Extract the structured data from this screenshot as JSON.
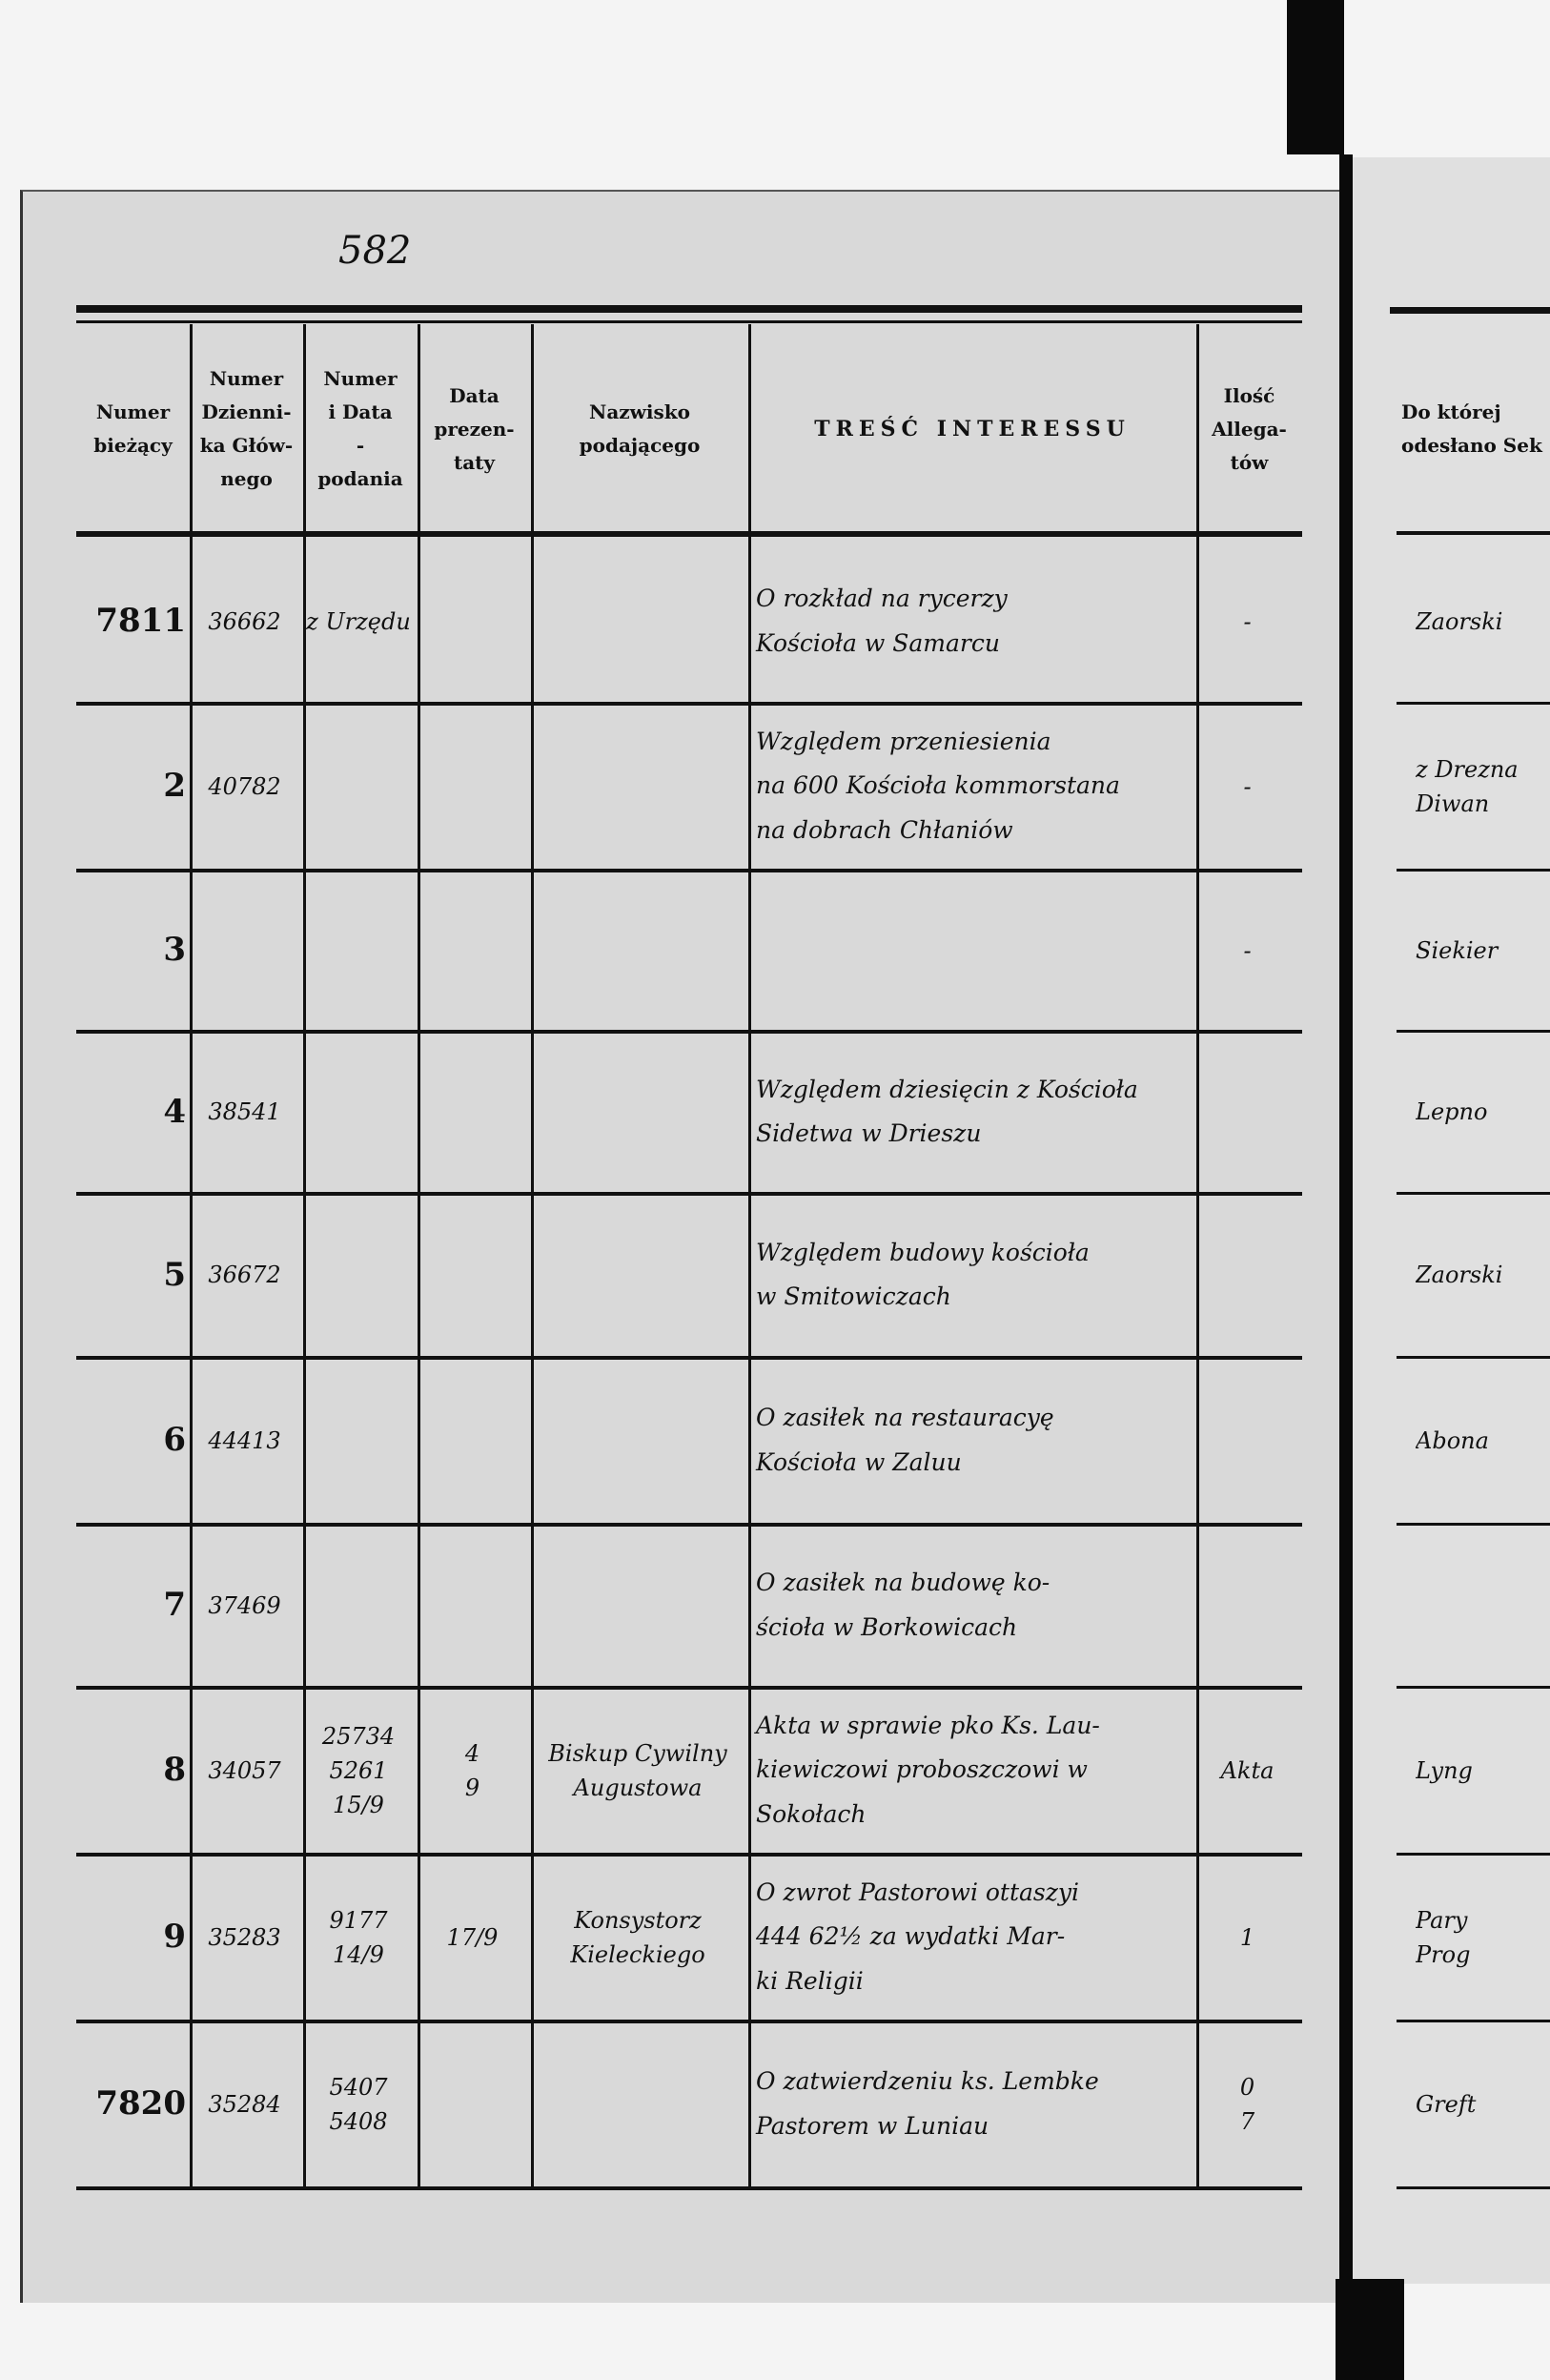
{
  "page_number": "582",
  "table": {
    "headers": [
      "Numer\nbieżący",
      "Numer\nDzienni-\nka Głów-\nnego",
      "Numer\ni Data\n-\npodania",
      "Data\nprezen-\ntaty",
      "Nazwisko\npodającego",
      "TREŚĆ INTERESSU",
      "Ilość\nAllega-\ntów"
    ],
    "rows": [
      {
        "numer": "7811",
        "dziennik": "36662",
        "numer_data": "z Urzędu",
        "data_prez": "",
        "nazwisko": "",
        "tresc": "O rozkład na rycerzy\nKościoła w Samarcu",
        "ilosc": "-"
      },
      {
        "numer": "2",
        "dziennik": "40782",
        "numer_data": "",
        "data_prez": "",
        "nazwisko": "",
        "tresc": "Względem przeniesienia\nna 600 Kościoła kommorstana\nna dobrach Chłaniów",
        "ilosc": "-"
      },
      {
        "numer": "3",
        "dziennik": "",
        "numer_data": "",
        "data_prez": "",
        "nazwisko": "",
        "tresc": "",
        "ilosc": "-"
      },
      {
        "numer": "4",
        "dziennik": "38541",
        "numer_data": "",
        "data_prez": "",
        "nazwisko": "",
        "tresc": "Względem dziesięcin z Kościoła\nSidetwa w Drieszu",
        "ilosc": ""
      },
      {
        "numer": "5",
        "dziennik": "36672",
        "numer_data": "",
        "data_prez": "",
        "nazwisko": "",
        "tresc": "Względem budowy kościoła\nw Smitowiczach",
        "ilosc": ""
      },
      {
        "numer": "6",
        "dziennik": "44413",
        "numer_data": "",
        "data_prez": "",
        "nazwisko": "",
        "tresc": "O zasiłek na restauracyę\nKościoła w Zaluu",
        "ilosc": ""
      },
      {
        "numer": "7",
        "dziennik": "37469",
        "numer_data": "",
        "data_prez": "",
        "nazwisko": "",
        "tresc": "O zasiłek na budowę ko-\nścioła w Borkowicach",
        "ilosc": ""
      },
      {
        "numer": "8",
        "dziennik": "34057",
        "numer_data": "25734\n5261\n15/9",
        "data_prez": "4\n9",
        "nazwisko": "Biskup Cywilny\nAugustowa",
        "tresc": "Akta w sprawie pko Ks. Lau-\nkiewiczowi proboszczowi w\nSokołach",
        "ilosc": "Akta"
      },
      {
        "numer": "9",
        "dziennik": "35283",
        "numer_data": "9177\n14/9",
        "data_prez": "17/9",
        "nazwisko": "Konsystorz\nKieleckiego",
        "tresc": "O zwrot Pastorowi ottaszyi\n444 62½ za wydatki Mar-\nki Religii",
        "ilosc": "1"
      },
      {
        "numer": "7820",
        "dziennik": "35284",
        "numer_data": "5407\n5408",
        "data_prez": "",
        "nazwisko": "",
        "tresc": "O zatwierdzeniu ks. Lembke\nPastorem w Luniau",
        "ilosc": "0\n7"
      }
    ]
  },
  "right_page": {
    "header": "Do której\nodesłano Sek",
    "entries": [
      "Zaorski",
      "z Drezna\nDiwan",
      "Siekier",
      "Lepno",
      "Zaorski",
      "Abona",
      "",
      "Lyng",
      "Pary\nProg",
      "Greft"
    ]
  }
}
